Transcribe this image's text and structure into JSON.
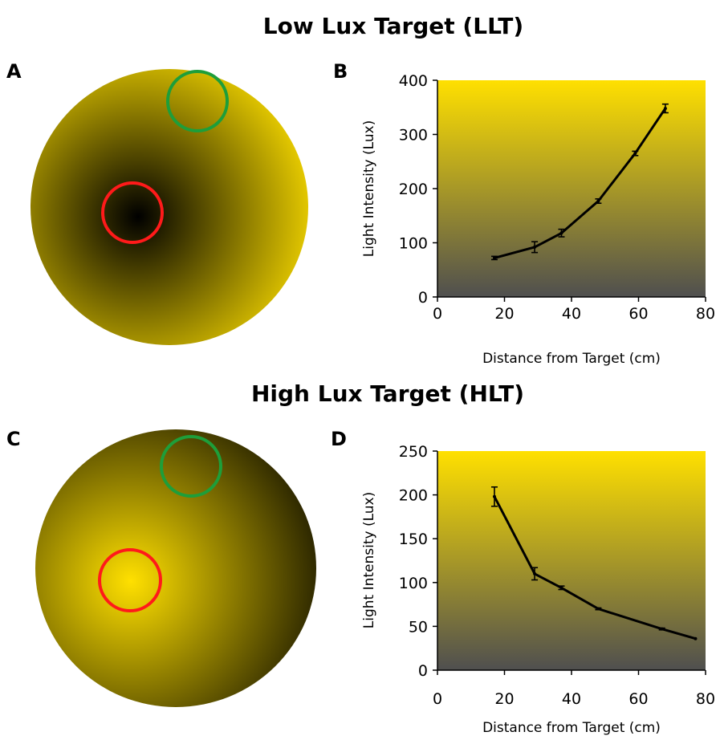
{
  "titles": {
    "top": "Low Lux Target (LLT)",
    "bottom": "High Lux Target (HLT)"
  },
  "panels": {
    "A": "A",
    "B": "B",
    "C": "C",
    "D": "D"
  },
  "colors": {
    "yellow": "#FFE000",
    "dark_gray": "#4F4F4F",
    "black": "#000000",
    "red_circle": "#FF1A1A",
    "green_circle": "#1E9E3A"
  },
  "chart_data": [
    {
      "type": "line",
      "panel": "B",
      "xlabel": "Distance from Target (cm)",
      "ylabel": "Light Intensity (Lux)",
      "xlim": [
        0,
        80
      ],
      "ylim": [
        0,
        400
      ],
      "xticks": [
        0,
        20,
        40,
        60,
        80
      ],
      "yticks": [
        0,
        100,
        200,
        300,
        400
      ],
      "x": [
        17,
        29,
        37,
        48,
        59,
        68
      ],
      "y": [
        72,
        92,
        118,
        177,
        265,
        348
      ],
      "errors": [
        3,
        10,
        7,
        4,
        4,
        8
      ],
      "grid": false
    },
    {
      "type": "line",
      "panel": "D",
      "xlabel": "Distance from Target (cm)",
      "ylabel": "Light Intensity (Lux)",
      "xlim": [
        0,
        80
      ],
      "ylim": [
        0,
        250
      ],
      "xticks": [
        0,
        20,
        40,
        60,
        80
      ],
      "yticks": [
        0,
        50,
        100,
        150,
        200,
        250
      ],
      "x": [
        17,
        29,
        37,
        48,
        67,
        77
      ],
      "y": [
        198,
        110,
        94,
        70,
        47,
        36
      ],
      "errors": [
        11,
        7,
        2,
        1,
        1,
        0
      ],
      "grid": false
    }
  ]
}
